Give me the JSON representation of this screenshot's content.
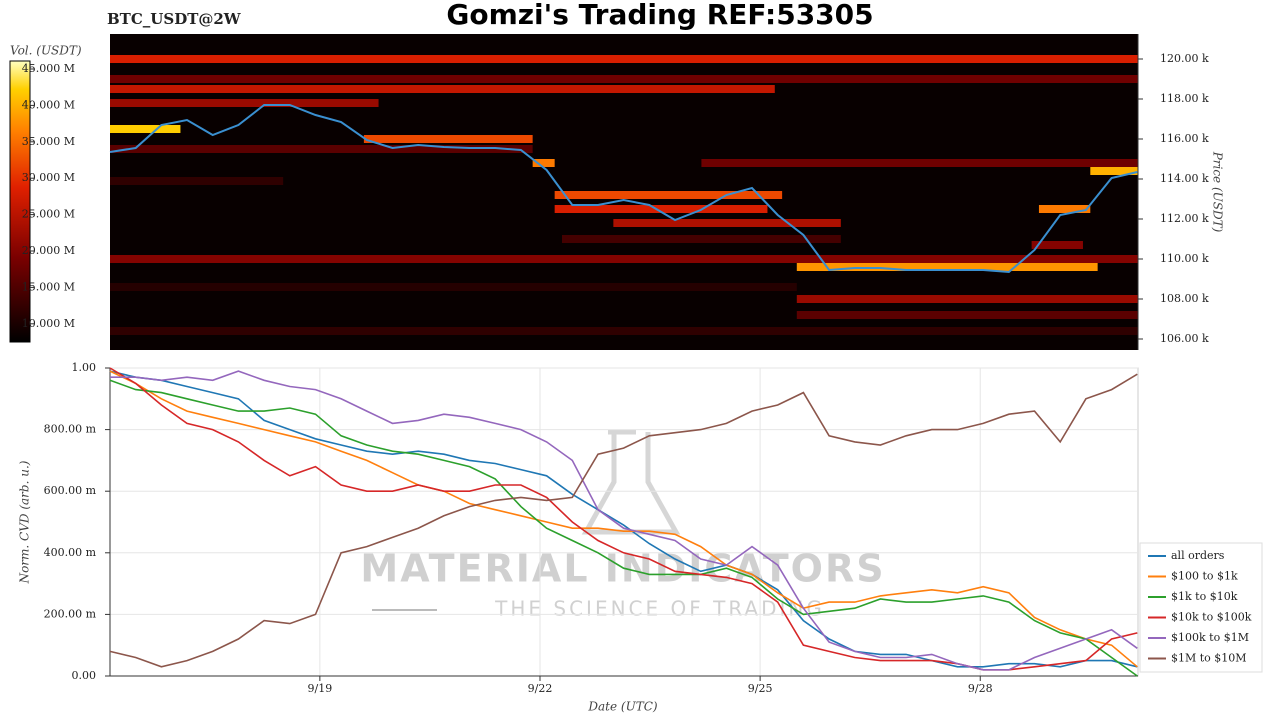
{
  "chart_data": [
    {
      "type": "heatmap",
      "title": "Gomzi's Trading REF:53305",
      "subtitle": "BTC_USDT@2W",
      "colorbar_label": "Vol. (USDT)",
      "ylabel": "Price (USDT)",
      "xlim": [
        16.14,
        30.15
      ],
      "ylim": [
        105450,
        121250
      ],
      "yticks": [
        {
          "value": 106000,
          "label": "106.00 k"
        },
        {
          "value": 108000,
          "label": "108.00 k"
        },
        {
          "value": 110000,
          "label": "110.00 k"
        },
        {
          "value": 112000,
          "label": "112.00 k"
        },
        {
          "value": 114000,
          "label": "114.00 k"
        },
        {
          "value": 116000,
          "label": "116.00 k"
        },
        {
          "value": 118000,
          "label": "118.00 k"
        },
        {
          "value": 120000,
          "label": "120.00 k"
        }
      ],
      "clim": [
        7500000,
        46100000
      ],
      "cticks": [
        {
          "value": 10000000,
          "label": "10.000 M"
        },
        {
          "value": 15000000,
          "label": "15.000 M"
        },
        {
          "value": 20000000,
          "label": "20.000 M"
        },
        {
          "value": 25000000,
          "label": "25.000 M"
        },
        {
          "value": 30000000,
          "label": "30.000 M"
        },
        {
          "value": 35000000,
          "label": "35.000 M"
        },
        {
          "value": 40000000,
          "label": "40.000 M"
        },
        {
          "value": 45000000,
          "label": "45.000 M"
        }
      ],
      "bands": [
        {
          "price": 120000,
          "start": 16.14,
          "end": 30.15,
          "volume": 28000000
        },
        {
          "price": 119000,
          "start": 16.14,
          "end": 30.15,
          "volume": 18000000
        },
        {
          "price": 118500,
          "start": 16.14,
          "end": 25.2,
          "volume": 26000000
        },
        {
          "price": 117800,
          "start": 16.14,
          "end": 19.8,
          "volume": 22000000
        },
        {
          "price": 116500,
          "start": 16.14,
          "end": 17.1,
          "volume": 42000000
        },
        {
          "price": 116000,
          "start": 19.6,
          "end": 21.9,
          "volume": 32000000
        },
        {
          "price": 115500,
          "start": 16.14,
          "end": 21.9,
          "volume": 16000000
        },
        {
          "price": 114800,
          "start": 24.2,
          "end": 30.15,
          "volume": 18000000
        },
        {
          "price": 114800,
          "start": 21.9,
          "end": 22.2,
          "volume": 36000000
        },
        {
          "price": 114400,
          "start": 29.5,
          "end": 30.15,
          "volume": 40000000
        },
        {
          "price": 113900,
          "start": 16.14,
          "end": 18.5,
          "volume": 12000000
        },
        {
          "price": 113200,
          "start": 22.2,
          "end": 25.3,
          "volume": 32000000
        },
        {
          "price": 112500,
          "start": 22.2,
          "end": 25.1,
          "volume": 28000000
        },
        {
          "price": 112500,
          "start": 28.8,
          "end": 29.5,
          "volume": 36000000
        },
        {
          "price": 111800,
          "start": 23.0,
          "end": 26.1,
          "volume": 24000000
        },
        {
          "price": 111000,
          "start": 22.3,
          "end": 26.1,
          "volume": 14000000
        },
        {
          "price": 110700,
          "start": 28.7,
          "end": 29.4,
          "volume": 20000000
        },
        {
          "price": 110000,
          "start": 16.14,
          "end": 30.15,
          "volume": 20000000
        },
        {
          "price": 109600,
          "start": 25.5,
          "end": 29.6,
          "volume": 38000000
        },
        {
          "price": 108600,
          "start": 16.14,
          "end": 25.5,
          "volume": 11000000
        },
        {
          "price": 108000,
          "start": 25.5,
          "end": 30.15,
          "volume": 22000000
        },
        {
          "price": 107200,
          "start": 25.5,
          "end": 30.15,
          "volume": 16000000
        },
        {
          "price": 106400,
          "start": 16.14,
          "end": 30.15,
          "volume": 12000000
        }
      ],
      "x": [
        16.14,
        16.49,
        16.84,
        17.19,
        17.54,
        17.89,
        18.24,
        18.59,
        18.94,
        19.29,
        19.64,
        19.99,
        20.34,
        20.69,
        21.04,
        21.39,
        21.74,
        22.09,
        22.44,
        22.79,
        23.14,
        23.49,
        23.84,
        24.19,
        24.54,
        24.89,
        25.24,
        25.59,
        25.94,
        26.29,
        26.64,
        26.99,
        27.34,
        27.69,
        28.04,
        28.39,
        28.74,
        29.09,
        29.44,
        29.79,
        30.14
      ],
      "series": [
        {
          "color": "#3a8fd0",
          "values": [
            115350,
            115550,
            116700,
            116950,
            116200,
            116700,
            117700,
            117700,
            117200,
            116850,
            115950,
            115550,
            115700,
            115600,
            115550,
            115550,
            115450,
            114450,
            112700,
            112700,
            112950,
            112700,
            111950,
            112450,
            113200,
            113550,
            112200,
            111200,
            109450,
            109550,
            109550,
            109450,
            109450,
            109450,
            109450,
            109350,
            110450,
            112200,
            112450,
            114050,
            114350
          ]
        }
      ]
    },
    {
      "type": "line",
      "xlabel": "Date (UTC)",
      "ylabel": "Norm. CVD (arb. u.)",
      "watermark": "MATERIAL INDICATORS",
      "watermark_subtitle": "THE SCIENCE OF TRADING",
      "xlim": [
        16.14,
        30.15
      ],
      "ylim": [
        0,
        1
      ],
      "xticks": [
        {
          "value": 19,
          "label": "9/19"
        },
        {
          "value": 22,
          "label": "9/22"
        },
        {
          "value": 25,
          "label": "9/25"
        },
        {
          "value": 28,
          "label": "9/28"
        }
      ],
      "yticks": [
        {
          "value": 0,
          "label": "0.00"
        },
        {
          "value": 0.2,
          "label": "200.00 m"
        },
        {
          "value": 0.4,
          "label": "400.00 m"
        },
        {
          "value": 0.6,
          "label": "600.00 m"
        },
        {
          "value": 0.8,
          "label": "800.00 m"
        },
        {
          "value": 1,
          "label": "1.00"
        }
      ],
      "grid": true,
      "legend": "right",
      "x": [
        16.14,
        16.49,
        16.84,
        17.19,
        17.54,
        17.89,
        18.24,
        18.59,
        18.94,
        19.29,
        19.64,
        19.99,
        20.34,
        20.69,
        21.04,
        21.39,
        21.74,
        22.09,
        22.44,
        22.79,
        23.14,
        23.49,
        23.84,
        24.19,
        24.54,
        24.89,
        25.24,
        25.59,
        25.94,
        26.29,
        26.64,
        26.99,
        27.34,
        27.69,
        28.04,
        28.39,
        28.74,
        29.09,
        29.44,
        29.79,
        30.14
      ],
      "series": [
        {
          "name": "all orders",
          "color": "#1f77b4",
          "values": [
            0.99,
            0.97,
            0.96,
            0.94,
            0.92,
            0.9,
            0.83,
            0.8,
            0.77,
            0.75,
            0.73,
            0.72,
            0.73,
            0.72,
            0.7,
            0.69,
            0.67,
            0.65,
            0.59,
            0.54,
            0.49,
            0.43,
            0.38,
            0.34,
            0.36,
            0.33,
            0.28,
            0.18,
            0.12,
            0.08,
            0.07,
            0.07,
            0.05,
            0.03,
            0.03,
            0.04,
            0.04,
            0.03,
            0.05,
            0.05,
            0.03
          ]
        },
        {
          "name": "$100 to $1k",
          "color": "#ff7f0e",
          "values": [
            0.99,
            0.95,
            0.9,
            0.86,
            0.84,
            0.82,
            0.8,
            0.78,
            0.76,
            0.73,
            0.7,
            0.66,
            0.62,
            0.6,
            0.56,
            0.54,
            0.52,
            0.5,
            0.48,
            0.48,
            0.47,
            0.47,
            0.46,
            0.42,
            0.36,
            0.33,
            0.27,
            0.22,
            0.24,
            0.24,
            0.26,
            0.27,
            0.28,
            0.27,
            0.29,
            0.27,
            0.19,
            0.15,
            0.12,
            0.1,
            0.03
          ]
        },
        {
          "name": "$1k to $10k",
          "color": "#2ca02c",
          "values": [
            0.96,
            0.93,
            0.92,
            0.9,
            0.88,
            0.86,
            0.86,
            0.87,
            0.85,
            0.78,
            0.75,
            0.73,
            0.72,
            0.7,
            0.68,
            0.64,
            0.55,
            0.48,
            0.44,
            0.4,
            0.35,
            0.33,
            0.33,
            0.33,
            0.35,
            0.32,
            0.25,
            0.2,
            0.21,
            0.22,
            0.25,
            0.24,
            0.24,
            0.25,
            0.26,
            0.24,
            0.18,
            0.14,
            0.12,
            0.06,
            0
          ]
        },
        {
          "name": "$10k to $100k",
          "color": "#d62728",
          "values": [
            1,
            0.95,
            0.88,
            0.82,
            0.8,
            0.76,
            0.7,
            0.65,
            0.68,
            0.62,
            0.6,
            0.6,
            0.62,
            0.6,
            0.6,
            0.62,
            0.62,
            0.58,
            0.5,
            0.44,
            0.4,
            0.38,
            0.34,
            0.33,
            0.32,
            0.3,
            0.24,
            0.1,
            0.08,
            0.06,
            0.05,
            0.05,
            0.05,
            0.04,
            0.02,
            0.02,
            0.03,
            0.04,
            0.05,
            0.12,
            0.14
          ]
        },
        {
          "name": "$100k to $1M",
          "color": "#9467bd",
          "values": [
            0.97,
            0.97,
            0.96,
            0.97,
            0.96,
            0.99,
            0.96,
            0.94,
            0.93,
            0.9,
            0.86,
            0.82,
            0.83,
            0.85,
            0.84,
            0.82,
            0.8,
            0.76,
            0.7,
            0.54,
            0.48,
            0.46,
            0.44,
            0.38,
            0.36,
            0.42,
            0.36,
            0.22,
            0.11,
            0.08,
            0.06,
            0.06,
            0.07,
            0.04,
            0.02,
            0.02,
            0.06,
            0.09,
            0.12,
            0.15,
            0.09
          ]
        },
        {
          "name": "$1M to $10M",
          "color": "#8c564b",
          "values": [
            0.08,
            0.06,
            0.03,
            0.05,
            0.08,
            0.12,
            0.18,
            0.17,
            0.2,
            0.4,
            0.42,
            0.45,
            0.48,
            0.52,
            0.55,
            0.57,
            0.58,
            0.57,
            0.58,
            0.72,
            0.74,
            0.78,
            0.79,
            0.8,
            0.82,
            0.86,
            0.88,
            0.92,
            0.78,
            0.76,
            0.75,
            0.78,
            0.8,
            0.8,
            0.82,
            0.85,
            0.86,
            0.76,
            0.9,
            0.93,
            0.98
          ]
        }
      ]
    }
  ]
}
